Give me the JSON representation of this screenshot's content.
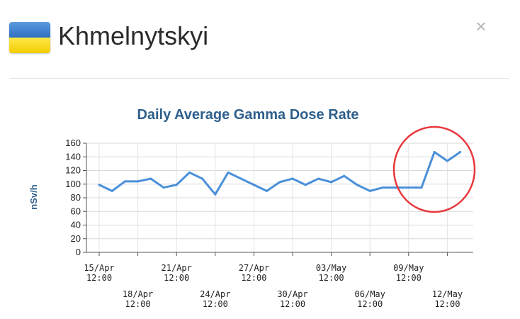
{
  "window": {
    "title": "Khmelnytskyi",
    "close_glyph": "×",
    "flag_icon": "ukraine-flag-icon",
    "close_icon": "close-icon"
  },
  "colors": {
    "line": "#4a90d9",
    "title": "#2e5f8c",
    "highlight_circle": "#e8383c",
    "flag_blue": "#2f6fc0",
    "flag_yellow": "#f2cc00"
  },
  "chart_data": {
    "type": "line",
    "title": "Daily Average Gamma Dose Rate",
    "ylabel": "nSv/h",
    "xlabel": "",
    "ylim": [
      0,
      160
    ],
    "yticks": [
      0,
      20,
      40,
      60,
      80,
      100,
      120,
      140,
      160
    ],
    "grid": true,
    "x_tick_labels": [
      {
        "date": "15/Apr",
        "time": "12:00",
        "row": 1,
        "day": 0
      },
      {
        "date": "18/Apr",
        "time": "12:00",
        "row": 2,
        "day": 3
      },
      {
        "date": "21/Apr",
        "time": "12:00",
        "row": 1,
        "day": 6
      },
      {
        "date": "24/Apr",
        "time": "12:00",
        "row": 2,
        "day": 9
      },
      {
        "date": "27/Apr",
        "time": "12:00",
        "row": 1,
        "day": 12
      },
      {
        "date": "30/Apr",
        "time": "12:00",
        "row": 2,
        "day": 15
      },
      {
        "date": "03/May",
        "time": "12:00",
        "row": 1,
        "day": 18
      },
      {
        "date": "06/May",
        "time": "12:00",
        "row": 2,
        "day": 21
      },
      {
        "date": "09/May",
        "time": "12:00",
        "row": 1,
        "day": 24
      },
      {
        "date": "12/May",
        "time": "12:00",
        "row": 2,
        "day": 27
      }
    ],
    "series": [
      {
        "x": [
          "15/Apr",
          "16/Apr",
          "17/Apr",
          "18/Apr",
          "19/Apr",
          "20/Apr",
          "21/Apr",
          "22/Apr",
          "23/Apr",
          "24/Apr",
          "25/Apr",
          "26/Apr",
          "27/Apr",
          "28/Apr",
          "29/Apr",
          "30/Apr",
          "01/May",
          "02/May",
          "03/May",
          "04/May",
          "05/May",
          "06/May",
          "07/May",
          "08/May",
          "09/May",
          "10/May",
          "11/May",
          "12/May",
          "13/May"
        ],
        "values": [
          99,
          90,
          104,
          104,
          108,
          95,
          99,
          117,
          108,
          85,
          117,
          108,
          99,
          90,
          103,
          108,
          99,
          108,
          103,
          112,
          99,
          90,
          95,
          95,
          95,
          95,
          147,
          134,
          147
        ]
      }
    ],
    "annotation": "highlight-circle"
  }
}
